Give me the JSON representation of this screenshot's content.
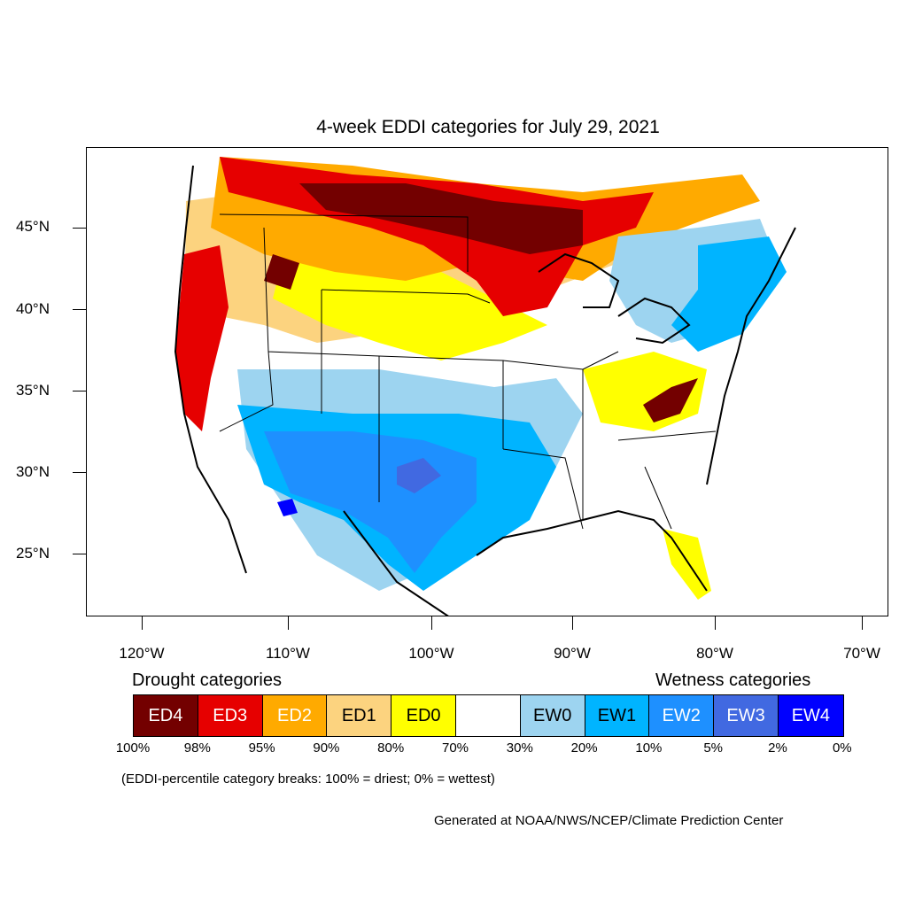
{
  "title": "4-week EDDI categories for July 29, 2021",
  "lat_labels": [
    "45°N",
    "40°N",
    "35°N",
    "30°N",
    "25°N"
  ],
  "lon_labels": [
    "120°W",
    "110°W",
    "100°W",
    "90°W",
    "80°W",
    "70°W"
  ],
  "legend": {
    "drought_heading": "Drought categories",
    "wetness_heading": "Wetness categories",
    "categories": [
      {
        "label": "ED4",
        "color": "#730000",
        "text_color": "#ffffff"
      },
      {
        "label": "ED3",
        "color": "#e60000",
        "text_color": "#ffffff"
      },
      {
        "label": "ED2",
        "color": "#ffaa00",
        "text_color": "#ffffff"
      },
      {
        "label": "ED1",
        "color": "#fcd37f",
        "text_color": "#000000"
      },
      {
        "label": "ED0",
        "color": "#ffff00",
        "text_color": "#000000"
      },
      {
        "label": "",
        "color": "#ffffff",
        "text_color": "#000000"
      },
      {
        "label": "EW0",
        "color": "#9dd4f0",
        "text_color": "#000000"
      },
      {
        "label": "EW1",
        "color": "#00b4ff",
        "text_color": "#000000"
      },
      {
        "label": "EW2",
        "color": "#1e90ff",
        "text_color": "#ffffff"
      },
      {
        "label": "EW3",
        "color": "#4169e1",
        "text_color": "#ffffff"
      },
      {
        "label": "EW4",
        "color": "#0000ff",
        "text_color": "#ffffff"
      }
    ],
    "breaks": [
      "100%",
      "98%",
      "95%",
      "90%",
      "80%",
      "70%",
      "30%",
      "20%",
      "10%",
      "5%",
      "2%",
      "0%"
    ]
  },
  "note": "(EDDI-percentile category breaks: 100% = driest; 0% = wettest)",
  "credit": "Generated at NOAA/NWS/NCEP/Climate Prediction Center"
}
